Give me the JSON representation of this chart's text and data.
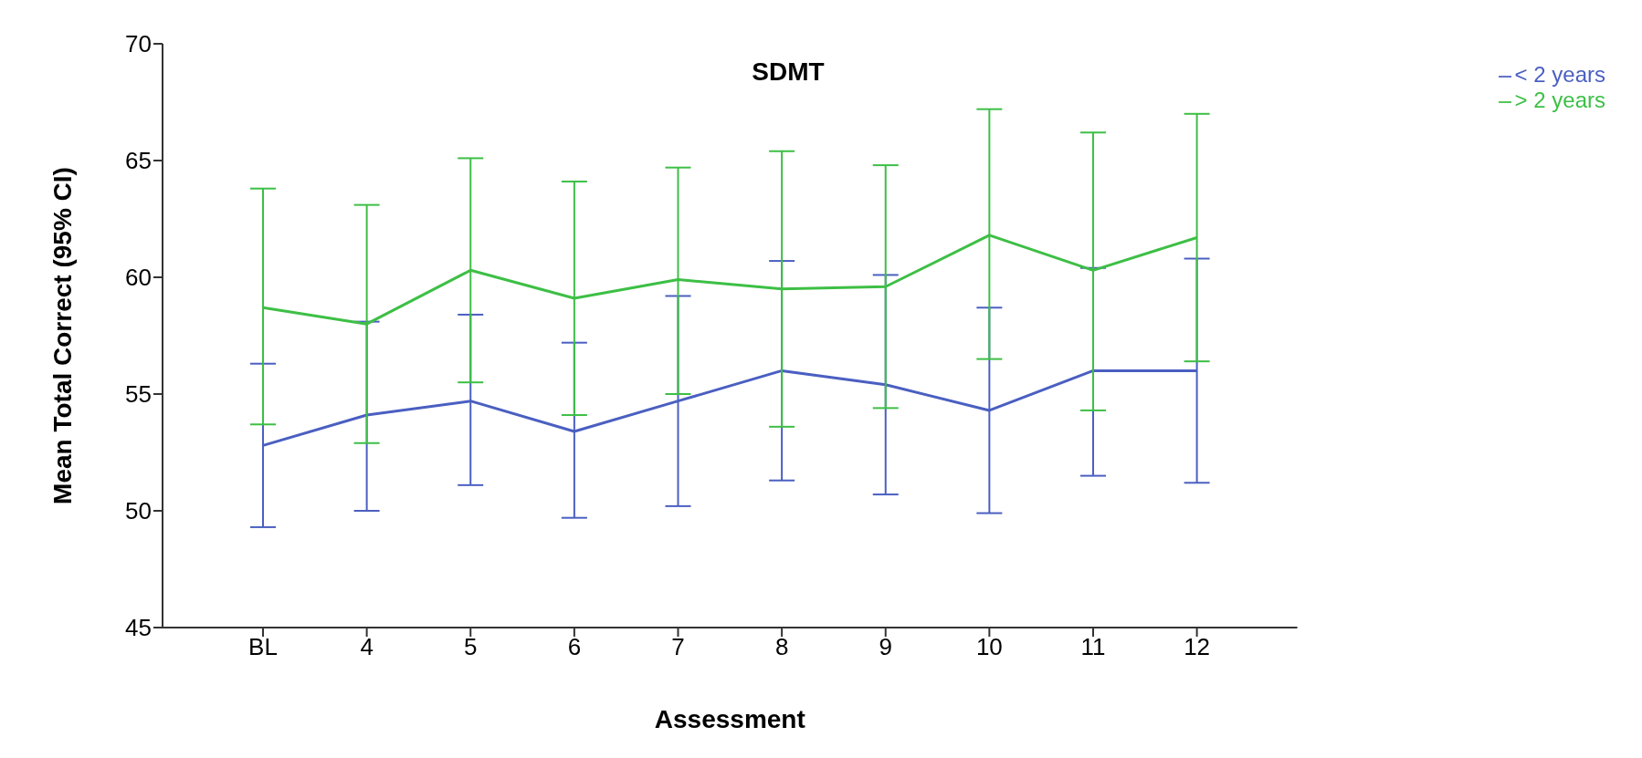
{
  "chart_data": {
    "type": "line",
    "title": "SDMT",
    "xlabel": "Assessment",
    "ylabel": "Mean Total Correct (95% CI)",
    "categories": [
      "BL",
      "4",
      "5",
      "6",
      "7",
      "8",
      "9",
      "10",
      "11",
      "12"
    ],
    "series": [
      {
        "name": "< 2 years",
        "color": "#4a5fc1",
        "values": [
          52.8,
          54.1,
          54.7,
          53.4,
          54.7,
          56.0,
          55.4,
          54.3,
          56.0,
          56.0
        ],
        "errors": [
          [
            49.3,
            56.3
          ],
          [
            50.0,
            58.1
          ],
          [
            51.1,
            58.4
          ],
          [
            49.7,
            57.2
          ],
          [
            50.2,
            59.2
          ],
          [
            51.3,
            60.7
          ],
          [
            50.7,
            60.1
          ],
          [
            49.9,
            58.7
          ],
          [
            51.5,
            60.4
          ],
          [
            51.2,
            60.8
          ]
        ]
      },
      {
        "name": "> 2 years",
        "color": "#3dbf45",
        "values": [
          58.7,
          58.0,
          60.3,
          59.1,
          59.9,
          59.5,
          59.6,
          61.8,
          60.3,
          61.7
        ],
        "errors": [
          [
            53.7,
            63.8
          ],
          [
            52.9,
            63.1
          ],
          [
            55.5,
            65.1
          ],
          [
            54.1,
            64.1
          ],
          [
            55.0,
            64.7
          ],
          [
            53.6,
            65.4
          ],
          [
            54.4,
            64.8
          ],
          [
            56.5,
            67.2
          ],
          [
            54.3,
            66.2
          ],
          [
            56.4,
            67.0
          ]
        ]
      }
    ],
    "ylim": [
      45,
      70
    ],
    "yticks": [
      45,
      50,
      55,
      60,
      65,
      70
    ],
    "grid": false,
    "legend": "top right",
    "marker": "none",
    "line_style": "solid"
  }
}
